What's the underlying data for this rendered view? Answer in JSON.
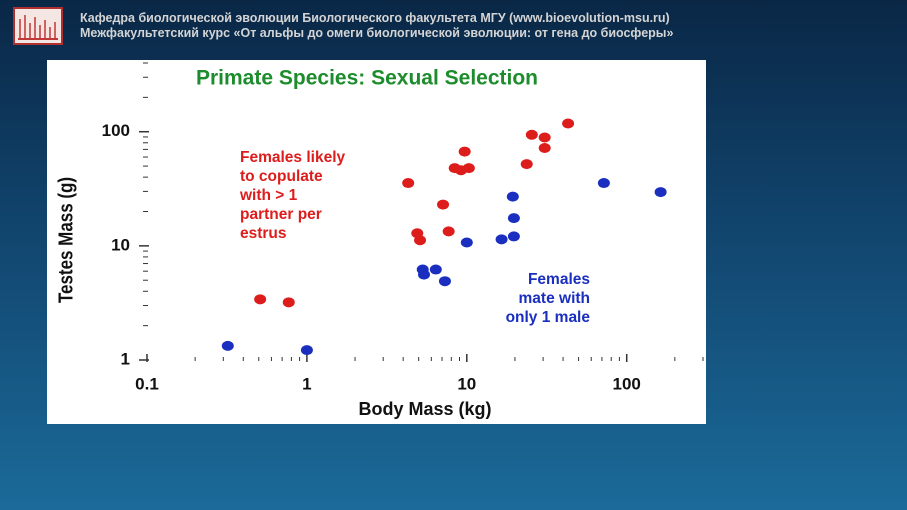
{
  "header": {
    "line1": "Кафедра биологической эволюции Биологического факультета МГУ (www.bioevolution-msu.ru)",
    "line2": "Межфакультетский курс «От альфы до омеги биологической эволюции: от гена до биосферы»"
  },
  "chart_data": {
    "type": "scatter",
    "title": "Primate Species:  Sexual Selection",
    "x_label": "Body Mass (kg)",
    "y_label": "Testes Mass (g)",
    "xscale": "log",
    "yscale": "log",
    "xlim": [
      0.1,
      300
    ],
    "ylim": [
      1,
      400
    ],
    "xticks": [
      0.1,
      1,
      10,
      100
    ],
    "yticks": [
      1,
      10,
      100
    ],
    "xticks_minor": [
      0.2,
      0.3,
      0.4,
      0.5,
      0.6,
      0.7,
      0.8,
      0.9,
      2,
      3,
      4,
      5,
      6,
      7,
      8,
      9,
      20,
      30,
      40,
      50,
      60,
      70,
      80,
      90,
      200,
      300
    ],
    "yticks_minor": [
      2,
      3,
      4,
      5,
      6,
      7,
      8,
      9,
      20,
      30,
      40,
      50,
      60,
      70,
      80,
      90,
      200,
      300,
      400
    ],
    "series": [
      {
        "name": "Females likely\nto copulate\nwith > 1\npartner per\nestrus",
        "color": "#dd1c1c",
        "x": [
          0.51,
          0.77,
          4.3,
          4.9,
          5.1,
          7.1,
          7.7,
          8.4,
          9.2,
          9.7,
          10.3,
          23.7,
          25.5,
          30.7,
          30.7,
          43
        ],
        "values": [
          3.4,
          3.2,
          35.5,
          12.9,
          11.2,
          23,
          13.4,
          48,
          46,
          67,
          48,
          52,
          94,
          89,
          72,
          118
        ]
      },
      {
        "name": "Females\nmate with\nonly 1 male",
        "color": "#1a2fbf",
        "x": [
          0.32,
          1.0,
          5.3,
          5.4,
          6.4,
          7.3,
          10,
          16.5,
          19.7,
          19.7,
          19.4,
          72,
          163
        ],
        "values": [
          1.33,
          1.22,
          6.2,
          5.6,
          6.2,
          4.9,
          10.7,
          11.4,
          12.1,
          17.5,
          27,
          35.5,
          29.6
        ]
      }
    ]
  }
}
